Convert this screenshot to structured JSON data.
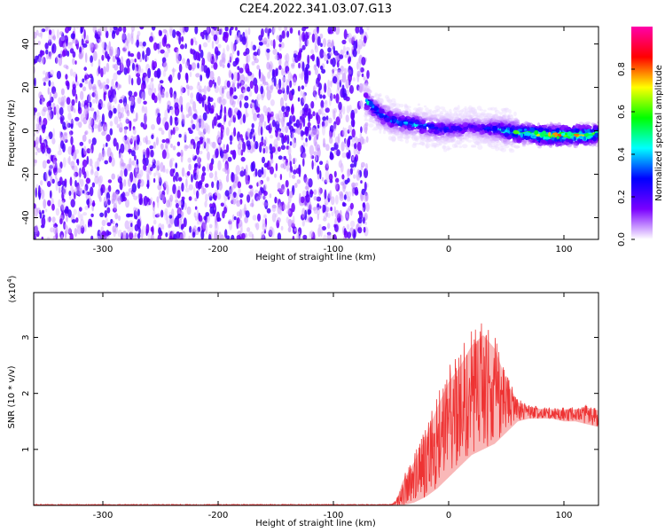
{
  "title": "C2E4.2022.341.03.07.G13",
  "chart_data": [
    {
      "type": "heatmap",
      "xlabel": "Height of straight line (km)",
      "ylabel": "Frequency (Hz)",
      "xlim": [
        -360,
        130
      ],
      "ylim": [
        -50,
        48
      ],
      "xticks": [
        -300,
        -200,
        -100,
        0,
        100
      ],
      "yticks": [
        -40,
        -20,
        0,
        20,
        40
      ],
      "colorbar": {
        "label": "Normalized spectral amplitude",
        "range": [
          0.0,
          1.0
        ],
        "ticks": [
          "0.0",
          "0.2",
          "0.4",
          "0.6",
          "0.8"
        ],
        "colors": [
          "#ffffff",
          "#7a00ff",
          "#0000ff",
          "#00ffff",
          "#00ff00",
          "#ffff00",
          "#ff0000",
          "#ff00aa"
        ]
      },
      "noise_region": {
        "x": [
          -360,
          -70
        ],
        "amplitude": 0.15
      },
      "signal_ridge": {
        "x": [
          -72,
          -60,
          -50,
          -40,
          -30,
          -20,
          -10,
          0,
          10,
          20,
          30,
          40,
          50,
          60,
          70,
          80,
          90,
          100,
          110,
          120,
          130
        ],
        "frequency": [
          14,
          8,
          5,
          4,
          3,
          2,
          1,
          1,
          1,
          2,
          1,
          1,
          0,
          -1,
          -1,
          -2,
          -2,
          -2,
          -2,
          -2,
          -1
        ],
        "peak_amplitude": [
          0.5,
          0.45,
          0.45,
          0.45,
          0.45,
          0.4,
          0.4,
          0.35,
          0.3,
          0.25,
          0.3,
          0.45,
          0.55,
          0.65,
          0.7,
          0.8,
          0.85,
          0.85,
          0.85,
          0.8,
          0.6
        ]
      }
    },
    {
      "type": "line",
      "xlabel": "Height of straight line (km)",
      "ylabel": "SNR (10 * v/v)",
      "yscale_note": "(x10",
      "yscale_exp": "4",
      "xlim": [
        -360,
        130
      ],
      "ylim": [
        0,
        3.8
      ],
      "xticks": [
        -300,
        -200,
        -100,
        0,
        100
      ],
      "yticks": [
        1,
        2,
        3
      ],
      "color": "#ee3333",
      "envelope": {
        "x": [
          -360,
          -50,
          -45,
          -40,
          -30,
          -20,
          -10,
          0,
          10,
          20,
          30,
          40,
          50,
          60,
          70,
          80,
          90,
          100,
          110,
          120,
          130
        ],
        "upper": [
          0.02,
          0.02,
          0.12,
          0.5,
          0.9,
          1.4,
          2.0,
          2.5,
          2.8,
          3.2,
          3.4,
          3.1,
          2.4,
          1.9,
          1.8,
          1.75,
          1.75,
          1.75,
          1.75,
          1.8,
          1.75
        ],
        "lower": [
          0.0,
          0.0,
          0.0,
          0.0,
          0.05,
          0.15,
          0.3,
          0.5,
          0.7,
          0.9,
          1.0,
          1.1,
          1.3,
          1.5,
          1.55,
          1.55,
          1.55,
          1.5,
          1.5,
          1.45,
          1.4
        ]
      }
    }
  ]
}
